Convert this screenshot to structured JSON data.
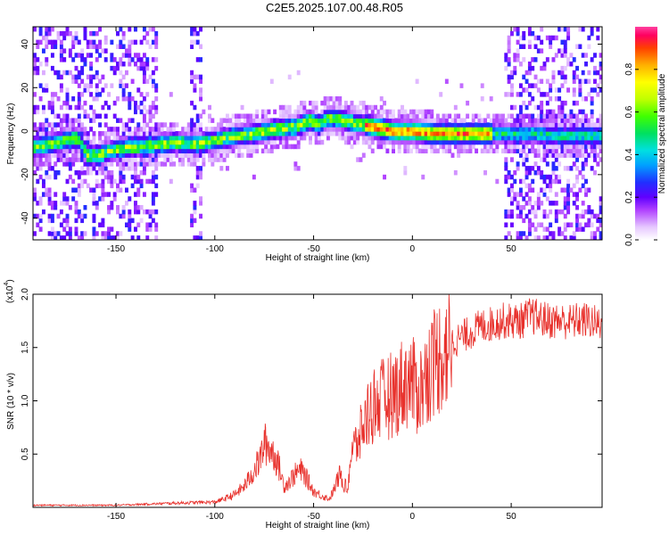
{
  "title": "C2E5.2025.107.00.48.R05",
  "chart_data": [
    {
      "type": "heatmap",
      "xlabel": "Height of straight line (km)",
      "ylabel": "Frequency (Hz)",
      "xlim": [
        -192,
        96
      ],
      "ylim": [
        -50,
        48
      ],
      "xticks": [
        -150,
        -100,
        -50,
        0,
        50
      ],
      "yticks": [
        -40,
        -20,
        0,
        20,
        40
      ],
      "ridge": {
        "x": [
          -190,
          -180,
          -170,
          -165,
          -160,
          -150,
          -140,
          -130,
          -120,
          -110,
          -100,
          -90,
          -80,
          -70,
          -60,
          -52,
          -48,
          -44,
          -40,
          -35,
          -30,
          -25,
          -20,
          -15,
          -10,
          0,
          10,
          20,
          30,
          40,
          50,
          60,
          70,
          80,
          90,
          96
        ],
        "y": [
          -8,
          -6,
          -4,
          -12,
          -12,
          -9,
          -8,
          -7,
          -6,
          -7,
          -5,
          -3,
          -2,
          0,
          1,
          4,
          2,
          5,
          5,
          4,
          3,
          2,
          1,
          0,
          -1,
          -1,
          -2,
          -2,
          -2,
          -2,
          -2,
          -2,
          -3,
          -3,
          -3,
          -3
        ]
      },
      "colorbar": {
        "label": "Normalized spectral amplitude",
        "ticks": [
          "0.0",
          "0.2",
          "0.4",
          "0.6",
          "0.8"
        ],
        "range": [
          0,
          1
        ]
      }
    },
    {
      "type": "line",
      "xlabel": "Height of straight line (km)",
      "ylabel": "SNR (10 * v/v)",
      "multiplier_base": "(x10",
      "multiplier_exp": "4",
      "multiplier_close": ")",
      "xlim": [
        -192,
        96
      ],
      "ylim": [
        0,
        2.0
      ],
      "xticks": [
        -150,
        -100,
        -50,
        0,
        50
      ],
      "yticks": [
        "0.5",
        "1.0",
        "1.5",
        "2.0"
      ],
      "color": "#e8312c",
      "series": [
        {
          "x": [
            -192,
            -150,
            -120,
            -100,
            -95,
            -90,
            -85,
            -80,
            -77,
            -75,
            -72,
            -70,
            -67,
            -65,
            -62,
            -60,
            -57,
            -55,
            -52,
            -50,
            -47,
            -45,
            -42,
            -40,
            -37,
            -35,
            -33,
            -31,
            -30,
            -28,
            -26,
            -24,
            -22,
            -20,
            -18,
            -15,
            -12,
            -10,
            -8,
            -5,
            -2,
            0,
            3,
            6,
            8,
            10,
            12,
            15,
            18,
            20,
            25,
            30,
            35,
            40,
            45,
            50,
            55,
            60,
            65,
            70,
            75,
            80,
            85,
            90,
            96
          ],
          "y": [
            0.02,
            0.02,
            0.04,
            0.05,
            0.08,
            0.12,
            0.2,
            0.35,
            0.45,
            0.6,
            0.55,
            0.5,
            0.35,
            0.2,
            0.25,
            0.3,
            0.35,
            0.32,
            0.22,
            0.15,
            0.12,
            0.1,
            0.08,
            0.15,
            0.3,
            0.25,
            0.15,
            0.5,
            0.55,
            0.6,
            0.7,
            0.8,
            0.9,
            0.95,
            1.0,
            1.0,
            1.05,
            1.05,
            1.1,
            1.15,
            1.2,
            1.15,
            1.1,
            1.15,
            1.3,
            1.35,
            1.4,
            1.45,
            1.5,
            1.55,
            1.6,
            1.65,
            1.7,
            1.72,
            1.75,
            1.75,
            1.75,
            1.8,
            1.77,
            1.75,
            1.75,
            1.74,
            1.76,
            1.75,
            1.7
          ]
        }
      ]
    }
  ]
}
